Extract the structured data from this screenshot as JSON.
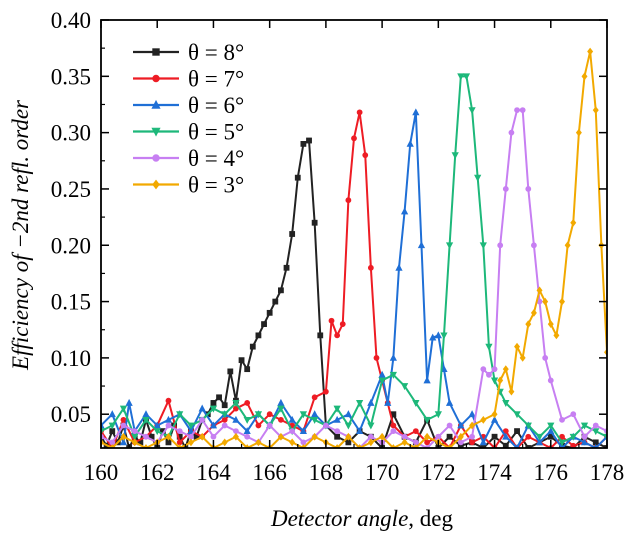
{
  "chart_data": {
    "type": "line",
    "title": "",
    "xlabel": {
      "italic": "Detector angle",
      "plain": ", deg"
    },
    "ylabel": "Efficiency of −2nd refl. order",
    "xlim": [
      160,
      178
    ],
    "ylim": [
      0.02,
      0.4
    ],
    "xticks": [
      160,
      162,
      164,
      166,
      168,
      170,
      172,
      174,
      176,
      178
    ],
    "xtick_labels": [
      "160",
      "162",
      "164",
      "166",
      "168",
      "170",
      "172",
      "174",
      "176",
      "178"
    ],
    "yticks": [
      0.05,
      0.1,
      0.15,
      0.2,
      0.25,
      0.3,
      0.35,
      0.4
    ],
    "ytick_labels": [
      "0.05",
      "0.10",
      "0.15",
      "0.20",
      "0.25",
      "0.30",
      "0.35",
      "0.40"
    ],
    "grid": false,
    "legend_position": "top-left",
    "series": [
      {
        "name": "θ = 8°",
        "color": "#222222",
        "marker": "square",
        "x": [
          160.0,
          160.2,
          160.4,
          160.6,
          160.8,
          161.0,
          161.2,
          161.4,
          161.6,
          161.8,
          162.0,
          162.2,
          162.4,
          162.6,
          162.8,
          163.0,
          163.2,
          163.4,
          163.6,
          163.8,
          164.0,
          164.2,
          164.4,
          164.6,
          164.8,
          165.0,
          165.2,
          165.4,
          165.6,
          165.8,
          166.0,
          166.2,
          166.4,
          166.6,
          166.8,
          167.0,
          167.2,
          167.4,
          167.6,
          167.8,
          168.0,
          168.4,
          168.8,
          169.2,
          169.6,
          170.0,
          170.4,
          170.8,
          171.2,
          171.6,
          172.0,
          172.4,
          172.8,
          173.2,
          173.6,
          174.0,
          174.4,
          174.8,
          175.2,
          175.6,
          176.0,
          176.4,
          176.8,
          177.2,
          177.6,
          178.0
        ],
        "y": [
          0.03,
          0.022,
          0.035,
          0.025,
          0.04,
          0.02,
          0.03,
          0.025,
          0.045,
          0.03,
          0.02,
          0.035,
          0.025,
          0.04,
          0.03,
          0.02,
          0.035,
          0.03,
          0.045,
          0.05,
          0.06,
          0.065,
          0.058,
          0.088,
          0.062,
          0.098,
          0.09,
          0.11,
          0.12,
          0.13,
          0.14,
          0.15,
          0.16,
          0.18,
          0.21,
          0.26,
          0.29,
          0.293,
          0.22,
          0.12,
          0.04,
          0.03,
          0.025,
          0.035,
          0.03,
          0.02,
          0.05,
          0.03,
          0.025,
          0.045,
          0.02,
          0.03,
          0.022,
          0.025,
          0.02,
          0.03,
          0.022,
          0.035,
          0.02,
          0.025,
          0.03,
          0.022,
          0.02,
          0.03,
          0.025,
          0.02
        ]
      },
      {
        "name": "θ = 7°",
        "color": "#ee1c24",
        "marker": "circle",
        "x": [
          160.0,
          160.4,
          160.8,
          161.2,
          161.6,
          162.0,
          162.4,
          162.8,
          163.2,
          163.6,
          164.0,
          164.4,
          164.8,
          165.2,
          165.6,
          166.0,
          166.4,
          166.8,
          167.2,
          167.6,
          168.0,
          168.2,
          168.4,
          168.6,
          168.8,
          169.0,
          169.2,
          169.4,
          169.6,
          169.8,
          170.0,
          170.2,
          170.4,
          170.8,
          171.2,
          171.6,
          172.0,
          172.4,
          172.8,
          173.2,
          173.6,
          174.0,
          174.4,
          174.8,
          175.2,
          175.6,
          176.0,
          176.4,
          176.8,
          177.2,
          177.6,
          178.0
        ],
        "y": [
          0.035,
          0.02,
          0.045,
          0.025,
          0.03,
          0.04,
          0.062,
          0.025,
          0.035,
          0.03,
          0.04,
          0.045,
          0.055,
          0.06,
          0.04,
          0.05,
          0.045,
          0.04,
          0.035,
          0.065,
          0.07,
          0.133,
          0.12,
          0.13,
          0.24,
          0.295,
          0.318,
          0.28,
          0.18,
          0.1,
          0.08,
          0.06,
          0.04,
          0.03,
          0.035,
          0.025,
          0.03,
          0.02,
          0.04,
          0.025,
          0.03,
          0.02,
          0.035,
          0.02,
          0.03,
          0.025,
          0.02,
          0.03,
          0.022,
          0.025,
          0.02,
          0.03
        ]
      },
      {
        "name": "θ = 6°",
        "color": "#1f6fd6",
        "marker": "triangle",
        "x": [
          160.0,
          160.4,
          160.8,
          161.0,
          161.2,
          161.6,
          162.0,
          162.4,
          162.8,
          163.2,
          163.6,
          164.0,
          164.4,
          164.8,
          165.2,
          165.6,
          166.0,
          166.4,
          166.8,
          167.2,
          167.6,
          168.0,
          168.4,
          168.8,
          169.2,
          169.6,
          170.0,
          170.2,
          170.4,
          170.6,
          170.8,
          171.0,
          171.2,
          171.4,
          171.6,
          171.8,
          172.0,
          172.2,
          172.4,
          172.8,
          173.2,
          173.6,
          174.0,
          174.4,
          174.8,
          175.2,
          175.6,
          176.0,
          176.4,
          176.8,
          177.2,
          177.6,
          178.0
        ],
        "y": [
          0.04,
          0.05,
          0.025,
          0.06,
          0.035,
          0.05,
          0.04,
          0.045,
          0.05,
          0.035,
          0.055,
          0.04,
          0.05,
          0.045,
          0.035,
          0.05,
          0.04,
          0.06,
          0.045,
          0.035,
          0.05,
          0.04,
          0.045,
          0.05,
          0.035,
          0.06,
          0.085,
          0.06,
          0.1,
          0.18,
          0.23,
          0.29,
          0.318,
          0.2,
          0.08,
          0.118,
          0.12,
          0.09,
          0.06,
          0.04,
          0.05,
          0.025,
          0.045,
          0.03,
          0.02,
          0.04,
          0.025,
          0.035,
          0.02,
          0.03,
          0.025,
          0.02,
          0.03
        ]
      },
      {
        "name": "θ = 5°",
        "color": "#1db87a",
        "marker": "triangle-down",
        "x": [
          160.0,
          160.4,
          160.8,
          161.2,
          161.6,
          162.0,
          162.4,
          162.8,
          163.2,
          163.6,
          164.0,
          164.4,
          164.8,
          165.2,
          165.6,
          166.0,
          166.4,
          166.8,
          167.2,
          167.6,
          168.0,
          168.4,
          168.8,
          169.2,
          169.6,
          170.0,
          170.4,
          170.8,
          171.2,
          171.6,
          172.0,
          172.2,
          172.4,
          172.6,
          172.8,
          173.0,
          173.2,
          173.4,
          173.6,
          173.8,
          174.0,
          174.2,
          174.4,
          174.8,
          175.2,
          175.6,
          176.0,
          176.4,
          176.8,
          177.2,
          177.6,
          178.0
        ],
        "y": [
          0.035,
          0.04,
          0.055,
          0.03,
          0.045,
          0.035,
          0.03,
          0.05,
          0.04,
          0.045,
          0.055,
          0.05,
          0.06,
          0.045,
          0.05,
          0.04,
          0.055,
          0.035,
          0.05,
          0.045,
          0.04,
          0.055,
          0.04,
          0.06,
          0.04,
          0.08,
          0.085,
          0.075,
          0.06,
          0.045,
          0.05,
          0.12,
          0.2,
          0.28,
          0.35,
          0.35,
          0.32,
          0.26,
          0.2,
          0.11,
          0.08,
          0.07,
          0.06,
          0.05,
          0.04,
          0.03,
          0.04,
          0.025,
          0.03,
          0.04,
          0.035,
          0.03
        ]
      },
      {
        "name": "θ = 4°",
        "color": "#c77ff2",
        "marker": "circle",
        "x": [
          160.0,
          160.4,
          160.8,
          161.2,
          161.6,
          162.0,
          162.4,
          162.8,
          163.2,
          163.6,
          164.0,
          164.4,
          164.8,
          165.2,
          165.6,
          166.0,
          166.4,
          166.8,
          167.2,
          167.6,
          168.0,
          168.4,
          168.8,
          169.2,
          169.6,
          170.0,
          170.4,
          170.8,
          171.2,
          171.6,
          172.0,
          172.4,
          172.8,
          173.2,
          173.6,
          173.8,
          174.0,
          174.2,
          174.4,
          174.6,
          174.8,
          175.0,
          175.2,
          175.4,
          175.6,
          175.8,
          176.0,
          176.4,
          176.8,
          177.2,
          177.6,
          178.0
        ],
        "y": [
          0.03,
          0.025,
          0.04,
          0.035,
          0.03,
          0.025,
          0.04,
          0.035,
          0.03,
          0.045,
          0.03,
          0.04,
          0.035,
          0.03,
          0.025,
          0.04,
          0.03,
          0.035,
          0.025,
          0.03,
          0.04,
          0.035,
          0.03,
          0.02,
          0.03,
          0.025,
          0.035,
          0.03,
          0.025,
          0.02,
          0.03,
          0.04,
          0.025,
          0.03,
          0.09,
          0.085,
          0.09,
          0.2,
          0.25,
          0.3,
          0.32,
          0.32,
          0.25,
          0.2,
          0.15,
          0.1,
          0.08,
          0.045,
          0.05,
          0.03,
          0.04,
          0.035
        ]
      },
      {
        "name": "θ = 3°",
        "color": "#f2a900",
        "marker": "diamond",
        "x": [
          160.0,
          160.4,
          160.8,
          161.2,
          161.6,
          162.0,
          162.4,
          162.8,
          163.2,
          163.6,
          164.0,
          164.4,
          164.8,
          165.2,
          165.6,
          166.0,
          166.4,
          166.8,
          167.2,
          167.6,
          168.0,
          168.4,
          168.8,
          169.2,
          169.6,
          170.0,
          170.4,
          170.8,
          171.2,
          171.6,
          172.0,
          172.4,
          172.8,
          173.2,
          173.6,
          174.0,
          174.2,
          174.4,
          174.6,
          174.8,
          175.0,
          175.2,
          175.4,
          175.6,
          175.8,
          176.0,
          176.2,
          176.4,
          176.6,
          176.8,
          177.0,
          177.2,
          177.4,
          177.6,
          177.8,
          178.0
        ],
        "y": [
          0.025,
          0.02,
          0.03,
          0.025,
          0.02,
          0.025,
          0.03,
          0.02,
          0.025,
          0.03,
          0.02,
          0.025,
          0.03,
          0.02,
          0.025,
          0.02,
          0.03,
          0.025,
          0.02,
          0.03,
          0.025,
          0.02,
          0.03,
          0.02,
          0.025,
          0.03,
          0.02,
          0.025,
          0.02,
          0.03,
          0.025,
          0.02,
          0.03,
          0.04,
          0.045,
          0.05,
          0.08,
          0.09,
          0.07,
          0.11,
          0.1,
          0.13,
          0.14,
          0.16,
          0.15,
          0.13,
          0.12,
          0.15,
          0.2,
          0.22,
          0.3,
          0.35,
          0.372,
          0.32,
          0.2,
          0.105
        ]
      }
    ]
  }
}
